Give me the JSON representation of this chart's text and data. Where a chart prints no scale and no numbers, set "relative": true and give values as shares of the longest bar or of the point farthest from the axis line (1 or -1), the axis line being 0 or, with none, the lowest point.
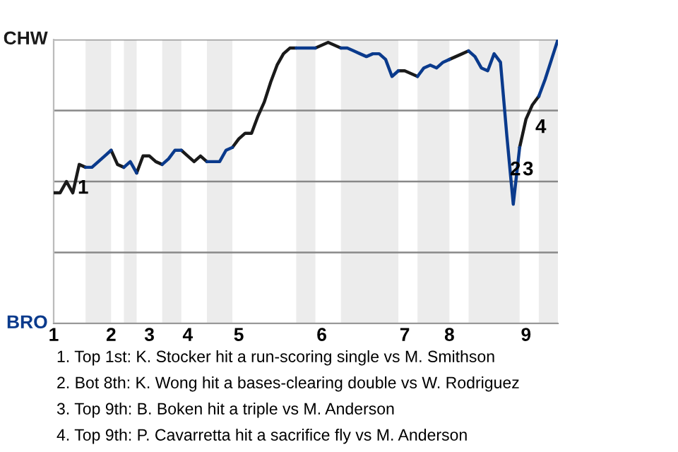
{
  "chart_data": {
    "type": "line",
    "relative": true,
    "categories": [
      "1",
      null,
      null,
      null,
      null,
      null,
      null,
      null,
      null,
      "2",
      null,
      null,
      null,
      null,
      null,
      "3",
      null,
      null,
      null,
      null,
      null,
      "4",
      null,
      null,
      null,
      null,
      null,
      null,
      null,
      "5",
      null,
      null,
      null,
      null,
      null,
      null,
      null,
      null,
      null,
      null,
      null,
      null,
      "6",
      null,
      null,
      null,
      null,
      null,
      null,
      null,
      null,
      null,
      null,
      null,
      null,
      "7",
      null,
      null,
      null,
      null,
      null,
      null,
      "8",
      null,
      null,
      null,
      null,
      null,
      null,
      null,
      null,
      null,
      null,
      null,
      "9",
      null,
      null,
      null,
      null,
      null
    ],
    "series": [
      {
        "color": "#1a1a1a",
        "values": [
          0.46,
          0.46,
          0.5,
          0.46,
          0.56,
          0.55,
          null,
          null,
          null,
          0.61,
          0.56,
          0.55,
          null,
          0.53,
          0.59,
          0.59,
          0.57,
          0.56,
          null,
          null,
          0.61,
          0.59,
          0.57,
          0.59,
          0.57,
          null,
          null,
          null,
          0.62,
          0.65,
          0.67,
          0.67,
          0.73,
          0.78,
          0.85,
          0.91,
          0.95,
          0.97,
          0.97,
          null,
          null,
          0.97,
          0.98,
          0.99,
          0.98,
          0.97,
          null,
          null,
          null,
          null,
          null,
          null,
          null,
          null,
          0.89,
          0.89,
          0.88,
          0.87,
          null,
          null,
          null,
          null,
          0.93,
          0.94,
          0.95,
          0.96,
          null,
          null,
          null,
          null,
          null,
          null,
          null,
          0.62,
          0.72,
          0.77,
          0.8,
          null,
          null,
          null
        ],
        "name": null
      },
      {
        "color": "#0a3a8c",
        "values": [
          null,
          null,
          null,
          null,
          null,
          0.55,
          0.55,
          0.57,
          0.59,
          0.61,
          null,
          0.55,
          0.57,
          0.53,
          null,
          null,
          null,
          0.56,
          0.58,
          0.61,
          0.61,
          null,
          null,
          null,
          0.57,
          0.57,
          0.57,
          0.61,
          0.62,
          null,
          null,
          null,
          null,
          null,
          null,
          null,
          null,
          null,
          0.97,
          0.97,
          0.97,
          0.97,
          null,
          null,
          null,
          0.97,
          0.97,
          0.96,
          0.95,
          0.94,
          0.95,
          0.95,
          0.93,
          0.87,
          0.89,
          null,
          null,
          0.87,
          0.9,
          0.91,
          0.9,
          0.92,
          0.93,
          null,
          null,
          0.96,
          0.94,
          0.9,
          0.89,
          0.95,
          0.92,
          0.66,
          0.42,
          0.62,
          null,
          null,
          0.8,
          0.86,
          0.93,
          1.0
        ],
        "name": null
      }
    ],
    "ref_lines": [
      {
        "axis": "y",
        "value": 0,
        "label": "BRO",
        "color": "#999999"
      },
      {
        "axis": "y",
        "value": 0.25,
        "color": "#888888"
      },
      {
        "axis": "y",
        "value": 0.5,
        "color": "#888888"
      },
      {
        "axis": "y",
        "value": 0.75,
        "color": "#888888"
      },
      {
        "axis": "y",
        "value": 1,
        "label": "CHW",
        "color": "#888888"
      }
    ],
    "annotations": [
      "1",
      "2",
      "3",
      "4",
      "1. Top 1st: K. Stocker hit a run-scoring single vs M. Smithson",
      "2. Bot 8th: K. Wong hit a bases-clearing double vs W. Rodriguez",
      "3. Top 9th: B. Boken hit a triple vs M. Anderson",
      "4. Top 9th: P. Cavarretta hit a sacrifice fly vs M. Anderson"
    ]
  }
}
